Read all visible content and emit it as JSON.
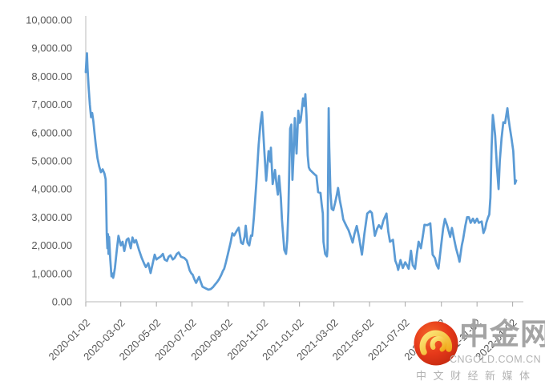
{
  "chart_data": {
    "type": "line",
    "title": "",
    "legend": "none",
    "grid": false,
    "series_color": "#5B9BD5",
    "axis_color": "#C6C6C6",
    "tick_color": "#A6A6A6",
    "label_color": "#595959",
    "y_axis": {
      "min": 0,
      "max": 10000,
      "step": 1000,
      "tick_labels": [
        "0.00",
        "1,000.00",
        "2,000.00",
        "3,000.00",
        "4,000.00",
        "5,000.00",
        "6,000.00",
        "7,000.00",
        "8,000.00",
        "9,000.00",
        "10,000.00"
      ]
    },
    "x_axis": {
      "unit": "days since 2020-01-02",
      "range_days": [
        0,
        737
      ],
      "ticks": [
        {
          "label": "2020-01-02",
          "day": 0
        },
        {
          "label": "2020-03-02",
          "day": 60
        },
        {
          "label": "2020-05-02",
          "day": 121
        },
        {
          "label": "2020-07-02",
          "day": 182
        },
        {
          "label": "2020-09-02",
          "day": 244
        },
        {
          "label": "2020-11-02",
          "day": 305
        },
        {
          "label": "2021-01-02",
          "day": 366
        },
        {
          "label": "2021-03-02",
          "day": 425
        },
        {
          "label": "2021-05-02",
          "day": 486
        },
        {
          "label": "2021-07-02",
          "day": 547
        },
        {
          "label": "2021-09-02",
          "day": 609
        },
        {
          "label": "2021-11-02",
          "day": 670
        },
        {
          "label": "2022-01-02",
          "day": 731
        }
      ]
    },
    "total_days": 737,
    "points": [
      [
        0,
        8150
      ],
      [
        1,
        8500
      ],
      [
        2,
        8820
      ],
      [
        3,
        8300
      ],
      [
        5,
        7600
      ],
      [
        7,
        7000
      ],
      [
        9,
        6550
      ],
      [
        11,
        6700
      ],
      [
        13,
        6400
      ],
      [
        15,
        6000
      ],
      [
        17,
        5600
      ],
      [
        20,
        5100
      ],
      [
        23,
        4800
      ],
      [
        26,
        4600
      ],
      [
        29,
        4700
      ],
      [
        32,
        4550
      ],
      [
        34,
        4350
      ],
      [
        35,
        3500
      ],
      [
        36,
        2400
      ],
      [
        37,
        1900
      ],
      [
        38,
        2400
      ],
      [
        39,
        1700
      ],
      [
        40,
        2300
      ],
      [
        42,
        1500
      ],
      [
        44,
        900
      ],
      [
        46,
        1000
      ],
      [
        47,
        850
      ],
      [
        48,
        950
      ],
      [
        50,
        1200
      ],
      [
        53,
        1800
      ],
      [
        56,
        2340
      ],
      [
        60,
        2000
      ],
      [
        63,
        2130
      ],
      [
        66,
        1800
      ],
      [
        70,
        2200
      ],
      [
        73,
        2250
      ],
      [
        77,
        1900
      ],
      [
        80,
        2280
      ],
      [
        83,
        2100
      ],
      [
        86,
        2190
      ],
      [
        91,
        1850
      ],
      [
        96,
        1550
      ],
      [
        100,
        1350
      ],
      [
        103,
        1230
      ],
      [
        107,
        1370
      ],
      [
        111,
        1020
      ],
      [
        114,
        1300
      ],
      [
        118,
        1670
      ],
      [
        121,
        1500
      ],
      [
        124,
        1550
      ],
      [
        128,
        1600
      ],
      [
        132,
        1700
      ],
      [
        135,
        1500
      ],
      [
        139,
        1450
      ],
      [
        142,
        1600
      ],
      [
        145,
        1650
      ],
      [
        149,
        1500
      ],
      [
        152,
        1550
      ],
      [
        156,
        1700
      ],
      [
        159,
        1750
      ],
      [
        163,
        1600
      ],
      [
        169,
        1550
      ],
      [
        173,
        1460
      ],
      [
        178,
        1110
      ],
      [
        181,
        1000
      ],
      [
        183,
        965
      ],
      [
        186,
        800
      ],
      [
        189,
        670
      ],
      [
        192,
        800
      ],
      [
        194,
        880
      ],
      [
        197,
        700
      ],
      [
        200,
        530
      ],
      [
        203,
        500
      ],
      [
        206,
        470
      ],
      [
        210,
        430
      ],
      [
        214,
        450
      ],
      [
        218,
        520
      ],
      [
        221,
        600
      ],
      [
        225,
        700
      ],
      [
        228,
        790
      ],
      [
        232,
        950
      ],
      [
        235,
        1100
      ],
      [
        237,
        1170
      ],
      [
        240,
        1400
      ],
      [
        244,
        1750
      ],
      [
        248,
        2100
      ],
      [
        251,
        2430
      ],
      [
        254,
        2350
      ],
      [
        258,
        2500
      ],
      [
        262,
        2630
      ],
      [
        266,
        2100
      ],
      [
        269,
        2050
      ],
      [
        272,
        2300
      ],
      [
        274,
        2700
      ],
      [
        277,
        2100
      ],
      [
        280,
        2000
      ],
      [
        283,
        2350
      ],
      [
        285,
        2340
      ],
      [
        288,
        3000
      ],
      [
        292,
        4200
      ],
      [
        296,
        5560
      ],
      [
        299,
        6300
      ],
      [
        302,
        6730
      ],
      [
        306,
        5260
      ],
      [
        309,
        4300
      ],
      [
        313,
        5350
      ],
      [
        316,
        4970
      ],
      [
        317,
        5470
      ],
      [
        320,
        4180
      ],
      [
        324,
        4680
      ],
      [
        327,
        4090
      ],
      [
        329,
        3800
      ],
      [
        331,
        4470
      ],
      [
        334,
        3700
      ],
      [
        336,
        2920
      ],
      [
        340,
        1840
      ],
      [
        343,
        1700
      ],
      [
        345,
        2200
      ],
      [
        347,
        3220
      ],
      [
        350,
        6140
      ],
      [
        352,
        6290
      ],
      [
        354,
        4330
      ],
      [
        356,
        5300
      ],
      [
        358,
        6520
      ],
      [
        361,
        5260
      ],
      [
        364,
        6780
      ],
      [
        366,
        6350
      ],
      [
        368,
        6430
      ],
      [
        370,
        6800
      ],
      [
        372,
        7220
      ],
      [
        374,
        6950
      ],
      [
        376,
        7370
      ],
      [
        378,
        6600
      ],
      [
        380,
        5200
      ],
      [
        382,
        4770
      ],
      [
        384,
        4680
      ],
      [
        388,
        4600
      ],
      [
        392,
        4520
      ],
      [
        395,
        4470
      ],
      [
        398,
        3890
      ],
      [
        402,
        3860
      ],
      [
        404,
        3450
      ],
      [
        406,
        3130
      ],
      [
        407,
        2130
      ],
      [
        410,
        1700
      ],
      [
        413,
        1610
      ],
      [
        414,
        1900
      ],
      [
        415,
        4500
      ],
      [
        416,
        6870
      ],
      [
        417,
        5500
      ],
      [
        419,
        3890
      ],
      [
        421,
        3300
      ],
      [
        424,
        3250
      ],
      [
        427,
        3510
      ],
      [
        430,
        3800
      ],
      [
        432,
        4040
      ],
      [
        435,
        3600
      ],
      [
        438,
        3300
      ],
      [
        441,
        2920
      ],
      [
        446,
        2700
      ],
      [
        450,
        2540
      ],
      [
        454,
        2300
      ],
      [
        457,
        2100
      ],
      [
        460,
        2400
      ],
      [
        464,
        2690
      ],
      [
        468,
        2280
      ],
      [
        471,
        1900
      ],
      [
        473,
        1670
      ],
      [
        477,
        2400
      ],
      [
        482,
        3130
      ],
      [
        487,
        3220
      ],
      [
        490,
        3150
      ],
      [
        495,
        2340
      ],
      [
        499,
        2600
      ],
      [
        502,
        2720
      ],
      [
        506,
        2600
      ],
      [
        510,
        2900
      ],
      [
        515,
        3130
      ],
      [
        518,
        2500
      ],
      [
        521,
        2130
      ],
      [
        526,
        2200
      ],
      [
        530,
        1460
      ],
      [
        533,
        1300
      ],
      [
        535,
        1130
      ],
      [
        539,
        1480
      ],
      [
        543,
        1200
      ],
      [
        547,
        1400
      ],
      [
        550,
        1300
      ],
      [
        553,
        1170
      ],
      [
        557,
        1810
      ],
      [
        560,
        1300
      ],
      [
        564,
        1170
      ],
      [
        567,
        1700
      ],
      [
        570,
        2130
      ],
      [
        574,
        1900
      ],
      [
        578,
        2430
      ],
      [
        580,
        2730
      ],
      [
        585,
        2720
      ],
      [
        590,
        2780
      ],
      [
        594,
        1670
      ],
      [
        598,
        1550
      ],
      [
        601,
        1300
      ],
      [
        604,
        1180
      ],
      [
        608,
        1900
      ],
      [
        612,
        2600
      ],
      [
        615,
        2940
      ],
      [
        619,
        2700
      ],
      [
        624,
        2300
      ],
      [
        627,
        2620
      ],
      [
        631,
        2200
      ],
      [
        634,
        1900
      ],
      [
        638,
        1600
      ],
      [
        640,
        1420
      ],
      [
        644,
        2000
      ],
      [
        646,
        2200
      ],
      [
        650,
        2700
      ],
      [
        653,
        3000
      ],
      [
        656,
        3000
      ],
      [
        659,
        2800
      ],
      [
        663,
        2950
      ],
      [
        666,
        2800
      ],
      [
        670,
        2950
      ],
      [
        673,
        2800
      ],
      [
        678,
        2850
      ],
      [
        681,
        2440
      ],
      [
        684,
        2600
      ],
      [
        686,
        2800
      ],
      [
        689,
        3000
      ],
      [
        691,
        3100
      ],
      [
        693,
        3700
      ],
      [
        695,
        5500
      ],
      [
        697,
        6630
      ],
      [
        699,
        6300
      ],
      [
        701,
        5900
      ],
      [
        704,
        4800
      ],
      [
        707,
        4000
      ],
      [
        709,
        5000
      ],
      [
        712,
        5800
      ],
      [
        715,
        6370
      ],
      [
        718,
        6340
      ],
      [
        720,
        6600
      ],
      [
        722,
        6870
      ],
      [
        724,
        6500
      ],
      [
        726,
        6200
      ],
      [
        729,
        5800
      ],
      [
        732,
        5350
      ],
      [
        734,
        4600
      ],
      [
        735,
        4190
      ],
      [
        737,
        4300
      ]
    ]
  },
  "watermark": {
    "brand": "中金网",
    "domain": "CNGOLD.COM.CN",
    "tagline": "中文财经新媒体",
    "icon": "cngold-swirl-icon",
    "red": "#E6391A",
    "red_dark": "#C52A10",
    "gold": "#F8C63C",
    "gold_light": "#FCE87E"
  }
}
